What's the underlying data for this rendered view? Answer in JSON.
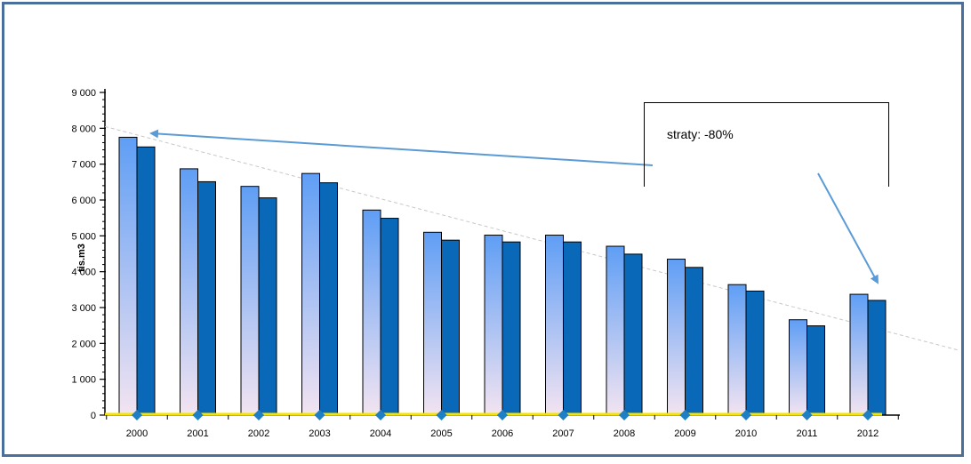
{
  "chart_data": {
    "type": "bar",
    "categories": [
      "2000",
      "2001",
      "2002",
      "2003",
      "2004",
      "2005",
      "2006",
      "2007",
      "2008",
      "2009",
      "2010",
      "2011",
      "2012"
    ],
    "series": [
      {
        "values": [
          7750,
          6870,
          6380,
          6740,
          5720,
          5100,
          5020,
          5020,
          4710,
          4350,
          3640,
          2660,
          3370
        ]
      },
      {
        "values": [
          7480,
          6510,
          6060,
          6480,
          5490,
          4880,
          4830,
          4830,
          4490,
          4120,
          3460,
          2490,
          3200
        ]
      }
    ],
    "ylabel": "tis.m3",
    "ylim": [
      0,
      9000
    ],
    "yticks": [
      {
        "value": 0,
        "label": "0"
      },
      {
        "value": 1000,
        "label": "1 000"
      },
      {
        "value": 2000,
        "label": "2 000"
      },
      {
        "value": 3000,
        "label": "3 000"
      },
      {
        "value": 4000,
        "label": "4 000"
      },
      {
        "value": 5000,
        "label": "5 000"
      },
      {
        "value": 6000,
        "label": "6 000"
      },
      {
        "value": 7000,
        "label": "7 000"
      },
      {
        "value": 8000,
        "label": "8 000"
      },
      {
        "value": 9000,
        "label": "9 000"
      }
    ],
    "trendline": {
      "start_value": 8050,
      "end_value": 3050
    },
    "colors": {
      "series1_top": "#5f9ef5",
      "series1_bottom": "#f3e4f1",
      "series2": "#0a68b8",
      "marker": "#1f7fc4",
      "baseline": "#f5e300",
      "trendline": "#c8c8c8",
      "arrow": "#5b9bd5",
      "frame": "#4a6f9a"
    },
    "legend": "none"
  },
  "annotation": {
    "text": "straty: -80%"
  }
}
